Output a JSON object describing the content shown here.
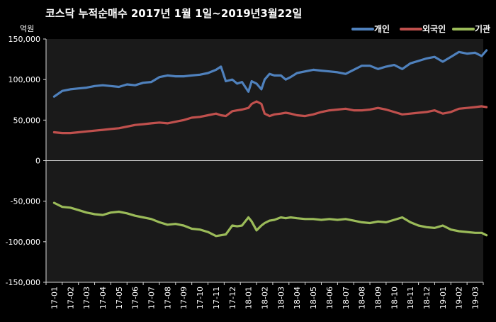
{
  "chart_data": {
    "type": "line",
    "title": "코스닥  누적순매수 2017년 1월 1일~2019년3월22일",
    "ylabel": "억원",
    "ylim": [
      -150000,
      150000
    ],
    "yticks": [
      150000,
      100000,
      50000,
      0,
      -50000,
      -100000,
      -150000
    ],
    "ytick_labels": [
      "150,000",
      "100,000",
      "50,000",
      "0",
      "-50,000",
      "-100,000",
      "-150,000"
    ],
    "categories": [
      "17-01",
      "17-02",
      "17-03",
      "17-04",
      "17-05",
      "17-06",
      "17-07",
      "17-08",
      "17-09",
      "17-10",
      "17-11",
      "17-12",
      "18-01",
      "18-02",
      "18-03",
      "18-04",
      "18-05",
      "18-06",
      "18-07",
      "18-08",
      "18-09",
      "18-10",
      "18-11",
      "18-12",
      "19-01",
      "19-02",
      "19-03"
    ],
    "legend_position": "top-right",
    "grid": false,
    "series": [
      {
        "name": "개인",
        "color": "#4F81BD",
        "x": [
          0,
          0.5,
          1,
          1.5,
          2,
          2.5,
          3,
          3.5,
          4,
          4.5,
          5,
          5.5,
          6,
          6.5,
          7,
          7.5,
          8,
          8.5,
          9,
          9.5,
          10,
          10.3,
          10.6,
          11,
          11.3,
          11.6,
          12,
          12.2,
          12.5,
          12.8,
          13,
          13.3,
          13.6,
          14,
          14.3,
          14.6,
          15,
          15.5,
          16,
          16.5,
          17,
          17.5,
          18,
          18.5,
          19,
          19.5,
          20,
          20.5,
          21,
          21.5,
          22,
          22.5,
          23,
          23.5,
          24,
          24.5,
          25,
          25.5,
          26,
          26.4,
          26.7
        ],
        "values": [
          79000,
          86000,
          88000,
          89000,
          90000,
          92000,
          93000,
          92000,
          91000,
          94000,
          93000,
          96000,
          97000,
          103000,
          105000,
          104000,
          104000,
          105000,
          106000,
          108000,
          112000,
          116000,
          98000,
          100000,
          95000,
          97000,
          85000,
          98000,
          95000,
          88000,
          100000,
          107000,
          105000,
          105000,
          100000,
          103000,
          108000,
          110000,
          112000,
          111000,
          110000,
          109000,
          107000,
          112000,
          117000,
          117000,
          113000,
          116000,
          118000,
          113000,
          120000,
          123000,
          126000,
          128000,
          122000,
          128000,
          134000,
          132000,
          133000,
          129000,
          136000
        ]
      },
      {
        "name": "외국인",
        "color": "#C0504D",
        "x": [
          0,
          0.5,
          1,
          1.5,
          2,
          2.5,
          3,
          3.5,
          4,
          4.5,
          5,
          5.5,
          6,
          6.5,
          7,
          7.5,
          8,
          8.5,
          9,
          9.5,
          10,
          10.3,
          10.6,
          11,
          11.3,
          11.6,
          12,
          12.2,
          12.5,
          12.8,
          13,
          13.3,
          13.6,
          14,
          14.3,
          14.6,
          15,
          15.5,
          16,
          16.5,
          17,
          17.5,
          18,
          18.5,
          19,
          19.5,
          20,
          20.5,
          21,
          21.5,
          22,
          22.5,
          23,
          23.5,
          24,
          24.5,
          25,
          25.5,
          26,
          26.4,
          26.7
        ],
        "values": [
          35000,
          34000,
          34000,
          35000,
          36000,
          37000,
          38000,
          39000,
          40000,
          42000,
          44000,
          45000,
          46000,
          47000,
          46000,
          48000,
          50000,
          53000,
          54000,
          56000,
          58000,
          56000,
          55000,
          61000,
          62000,
          63000,
          65000,
          70000,
          73000,
          70000,
          58000,
          55000,
          57000,
          58000,
          59000,
          58000,
          56000,
          55000,
          57000,
          60000,
          62000,
          63000,
          64000,
          62000,
          62000,
          63000,
          65000,
          63000,
          60000,
          57000,
          58000,
          59000,
          60000,
          62000,
          58000,
          60000,
          64000,
          65000,
          66000,
          67000,
          66000
        ]
      },
      {
        "name": "기관",
        "color": "#9BBB59",
        "x": [
          0,
          0.5,
          1,
          1.5,
          2,
          2.5,
          3,
          3.5,
          4,
          4.5,
          5,
          5.5,
          6,
          6.5,
          7,
          7.5,
          8,
          8.5,
          9,
          9.5,
          10,
          10.3,
          10.6,
          11,
          11.3,
          11.6,
          12,
          12.2,
          12.5,
          12.8,
          13,
          13.3,
          13.6,
          14,
          14.3,
          14.6,
          15,
          15.5,
          16,
          16.5,
          17,
          17.5,
          18,
          18.5,
          19,
          19.5,
          20,
          20.5,
          21,
          21.5,
          22,
          22.5,
          23,
          23.5,
          24,
          24.5,
          25,
          25.5,
          26,
          26.4,
          26.7
        ],
        "values": [
          -52000,
          -57000,
          -58000,
          -61000,
          -64000,
          -66000,
          -67000,
          -64000,
          -63000,
          -65000,
          -68000,
          -70000,
          -72000,
          -76000,
          -79000,
          -78000,
          -80000,
          -84000,
          -85000,
          -88000,
          -93000,
          -92000,
          -91000,
          -80000,
          -81000,
          -80000,
          -70000,
          -75000,
          -86000,
          -80000,
          -77000,
          -74000,
          -73000,
          -70000,
          -71000,
          -70000,
          -71000,
          -72000,
          -72000,
          -73000,
          -72000,
          -73000,
          -72000,
          -74000,
          -76000,
          -77000,
          -75000,
          -76000,
          -73000,
          -70000,
          -76000,
          -80000,
          -82000,
          -83000,
          -80000,
          -85000,
          -87000,
          -88000,
          -89000,
          -89000,
          -92000
        ]
      }
    ]
  }
}
